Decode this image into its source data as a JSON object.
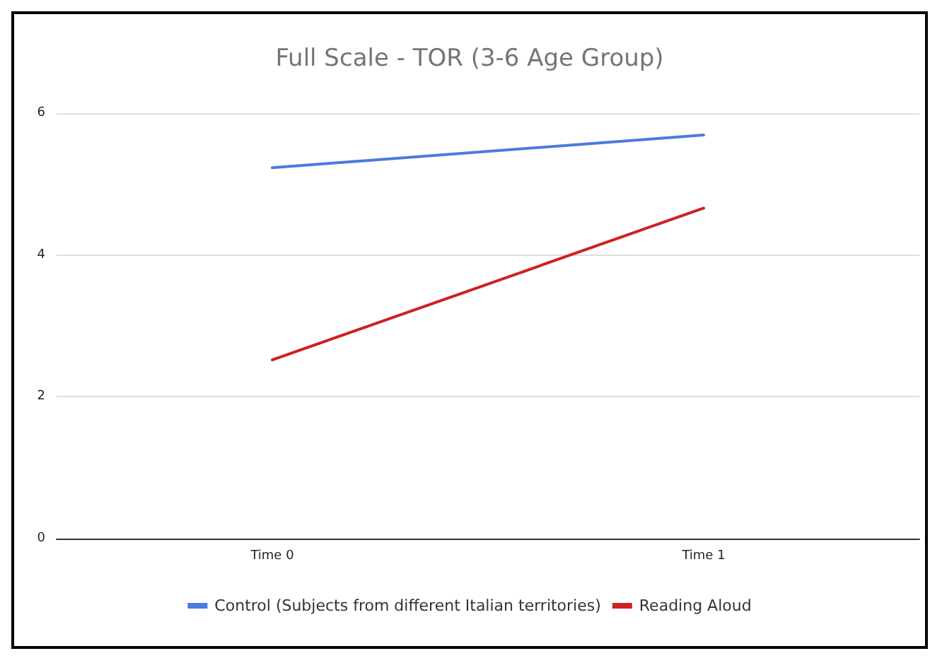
{
  "chart_data": {
    "type": "line",
    "title": "Full Scale - TOR (3-6 Age Group)",
    "categories": [
      "Time 0",
      "Time 1"
    ],
    "series": [
      {
        "name": "Control (Subjects from different Italian territories)",
        "color": "#4a7be0",
        "values": [
          5.23,
          5.69
        ]
      },
      {
        "name": "Reading Aloud",
        "color": "#cc2222",
        "values": [
          2.52,
          4.66
        ]
      }
    ],
    "ylim": [
      0,
      6
    ],
    "yticks": [
      0,
      2,
      4,
      6
    ],
    "grid": "y",
    "legend": "bottom",
    "marker": "none",
    "line_style": "solid"
  }
}
